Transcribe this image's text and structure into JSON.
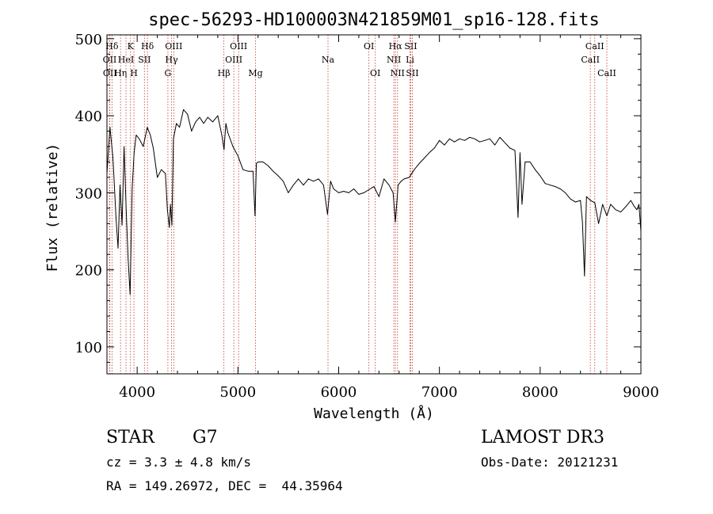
{
  "chart_data": {
    "type": "line",
    "title": "spec-56293-HD100003N421859M01_sp16-128.fits",
    "xlabel": "Wavelength (Å)",
    "ylabel": "Flux (relative)",
    "xlim": [
      3700,
      9000
    ],
    "ylim": [
      65,
      505
    ],
    "xticks": [
      4000,
      5000,
      6000,
      7000,
      8000,
      9000
    ],
    "yticks": [
      100,
      200,
      300,
      400,
      500
    ],
    "series": [
      {
        "name": "flux",
        "x": [
          3700,
          3730,
          3760,
          3790,
          3810,
          3830,
          3850,
          3870,
          3890,
          3910,
          3930,
          3950,
          3970,
          3990,
          4020,
          4060,
          4100,
          4130,
          4160,
          4200,
          4240,
          4280,
          4300,
          4320,
          4330,
          4345,
          4360,
          4390,
          4420,
          4460,
          4500,
          4540,
          4580,
          4620,
          4660,
          4700,
          4750,
          4800,
          4840,
          4862,
          4880,
          4900,
          4950,
          5000,
          5050,
          5100,
          5150,
          5170,
          5183,
          5200,
          5250,
          5300,
          5350,
          5400,
          5450,
          5500,
          5550,
          5600,
          5650,
          5700,
          5750,
          5800,
          5850,
          5889,
          5920,
          5950,
          6000,
          6050,
          6100,
          6150,
          6200,
          6250,
          6300,
          6350,
          6400,
          6450,
          6500,
          6540,
          6563,
          6590,
          6620,
          6650,
          6700,
          6750,
          6800,
          6850,
          6900,
          6950,
          7000,
          7050,
          7100,
          7150,
          7200,
          7250,
          7300,
          7350,
          7400,
          7450,
          7500,
          7550,
          7600,
          7650,
          7700,
          7750,
          7780,
          7800,
          7820,
          7850,
          7900,
          7950,
          8000,
          8050,
          8100,
          8150,
          8200,
          8250,
          8300,
          8350,
          8400,
          8420,
          8440,
          8460,
          8500,
          8542,
          8580,
          8620,
          8662,
          8700,
          8750,
          8800,
          8850,
          8900,
          8930,
          8960,
          8980,
          9000
        ],
        "values": [
          325,
          385,
          345,
          268,
          228,
          310,
          258,
          360,
          280,
          215,
          168,
          305,
          352,
          375,
          370,
          360,
          385,
          375,
          358,
          320,
          330,
          325,
          278,
          255,
          285,
          258,
          370,
          390,
          385,
          408,
          402,
          380,
          392,
          398,
          390,
          398,
          392,
          400,
          375,
          356,
          390,
          378,
          360,
          348,
          330,
          328,
          328,
          270,
          338,
          340,
          340,
          335,
          328,
          322,
          315,
          300,
          310,
          318,
          310,
          318,
          315,
          318,
          310,
          272,
          315,
          305,
          300,
          302,
          300,
          305,
          298,
          300,
          304,
          308,
          295,
          318,
          310,
          300,
          262,
          310,
          315,
          318,
          320,
          330,
          338,
          345,
          352,
          358,
          368,
          362,
          370,
          366,
          370,
          368,
          372,
          370,
          366,
          368,
          370,
          362,
          372,
          365,
          358,
          355,
          268,
          352,
          285,
          340,
          340,
          330,
          322,
          312,
          310,
          308,
          305,
          300,
          292,
          288,
          290,
          262,
          192,
          295,
          290,
          287,
          260,
          285,
          270,
          285,
          278,
          275,
          282,
          290,
          283,
          278,
          285,
          250
        ]
      }
    ],
    "lines": [
      {
        "label": "Hδ",
        "x": 3750,
        "row": 0
      },
      {
        "label": "OII",
        "x": 3727,
        "row": 1
      },
      {
        "label": "OII",
        "x": 3729,
        "row": 2
      },
      {
        "label": "K",
        "x": 3934,
        "row": 0
      },
      {
        "label": "HeI",
        "x": 3889,
        "row": 1
      },
      {
        "label": "Hη",
        "x": 3835,
        "row": 2
      },
      {
        "label": "Hδ",
        "x": 4102,
        "row": 0
      },
      {
        "label": "SII",
        "x": 4072,
        "row": 1
      },
      {
        "label": "H",
        "x": 3968,
        "row": 2
      },
      {
        "label": "OIII",
        "x": 4363,
        "row": 0
      },
      {
        "label": "Hγ",
        "x": 4341,
        "row": 1
      },
      {
        "label": "G",
        "x": 4305,
        "row": 2
      },
      {
        "label": "OIII",
        "x": 5007,
        "row": 0
      },
      {
        "label": "OIII",
        "x": 4959,
        "row": 1
      },
      {
        "label": "Hβ",
        "x": 4861,
        "row": 2
      },
      {
        "label": "Mg",
        "x": 5175,
        "row": 2
      },
      {
        "label": "Na",
        "x": 5894,
        "row": 1
      },
      {
        "label": "OI",
        "x": 6300,
        "row": 0
      },
      {
        "label": "OI",
        "x": 6363,
        "row": 2
      },
      {
        "label": "Hα",
        "x": 6563,
        "row": 0
      },
      {
        "label": "SII",
        "x": 6716,
        "row": 0
      },
      {
        "label": "NII",
        "x": 6548,
        "row": 1
      },
      {
        "label": "Li",
        "x": 6708,
        "row": 1
      },
      {
        "label": "NII",
        "x": 6584,
        "row": 2
      },
      {
        "label": "SII",
        "x": 6731,
        "row": 2
      },
      {
        "label": "CaII",
        "x": 8542,
        "row": 0
      },
      {
        "label": "CaII",
        "x": 8498,
        "row": 1
      },
      {
        "label": "CaII",
        "x": 8662,
        "row": 2
      }
    ]
  },
  "info": {
    "class": "STAR",
    "subclass": "G7",
    "cz": "cz = 3.3 ± 4.8 km/s",
    "coords": "RA = 149.26972, DEC =  44.35964",
    "survey": "LAMOST DR3",
    "obs_date": "Obs-Date: 20121231"
  }
}
